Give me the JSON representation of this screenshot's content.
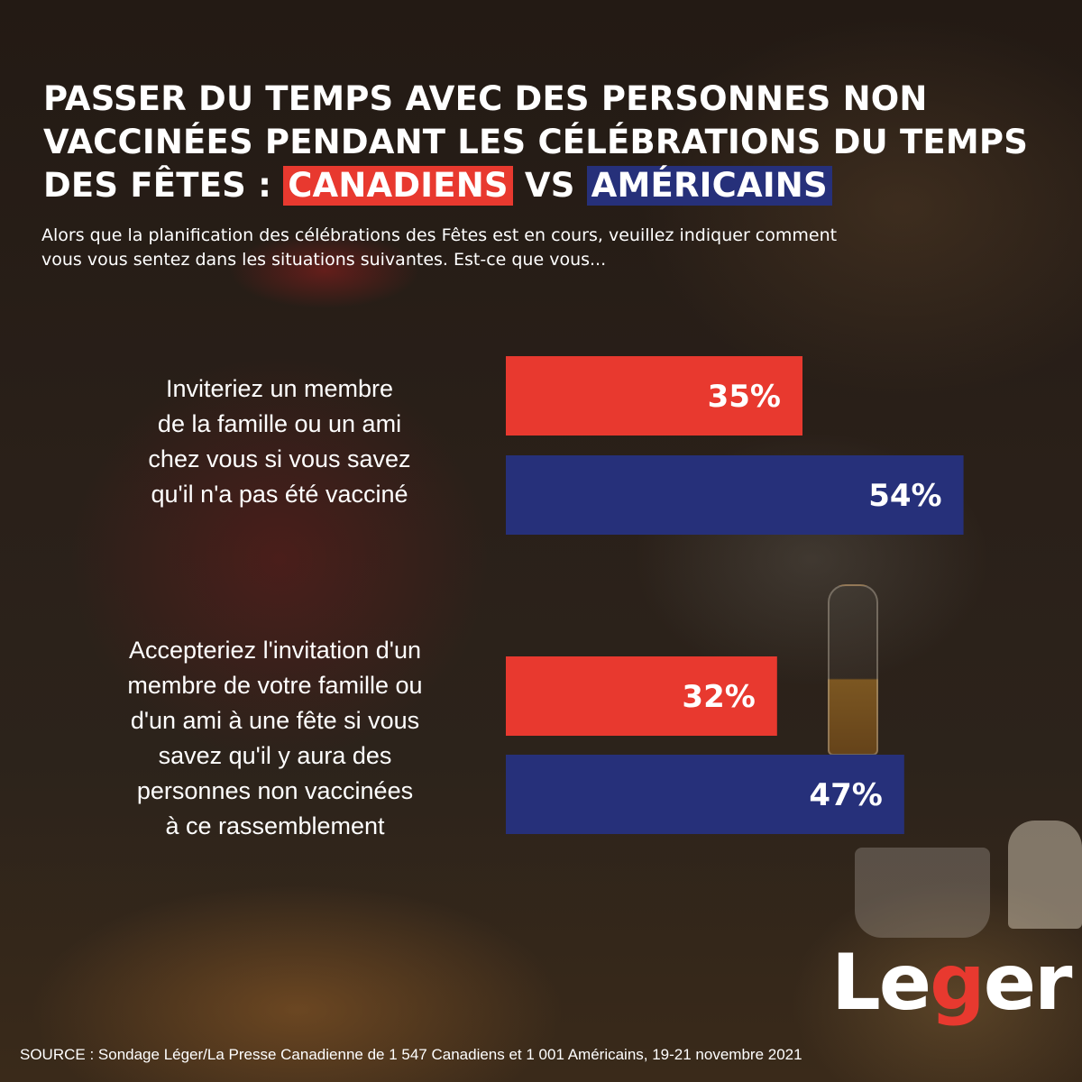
{
  "title": {
    "line1": "PASSER DU TEMPS AVEC DES PERSONNES NON",
    "line2": "VACCINÉES PENDANT LES CÉLÉBRATIONS DU TEMPS",
    "line3_prefix": "DES FÊTES :",
    "highlight_canadiens": "CANADIENS",
    "vs": "VS",
    "highlight_americains": "AMÉRICAINS"
  },
  "subtitle": {
    "line1": "Alors que la planification des célébrations des Fêtes est en cours, veuillez indiquer comment",
    "line2": "vous vous sentez dans les situations suivantes. Est-ce que vous..."
  },
  "questions": [
    {
      "lines": [
        "Inviteriez un membre",
        "de la famille ou un ami",
        "chez vous si vous savez",
        "qu'il n'a pas été vacciné"
      ]
    },
    {
      "lines": [
        "Accepteriez l'invitation d'un",
        "membre de votre famille ou",
        "d'un ami à une fête si vous",
        "savez qu'il y aura des",
        "personnes non vaccinées",
        "à ce rassemblement"
      ]
    }
  ],
  "chart_data": {
    "type": "bar",
    "orientation": "horizontal",
    "categories": [
      "Q1",
      "Q2"
    ],
    "series": [
      {
        "name": "CANADIENS",
        "color": "#e8392f",
        "values": [
          35,
          32
        ],
        "labels": [
          "35%",
          "32%"
        ]
      },
      {
        "name": "AMÉRICAINS",
        "color": "#26307a",
        "values": [
          54,
          47
        ],
        "labels": [
          "54%",
          "47%"
        ]
      }
    ],
    "unit": "%",
    "xlim": [
      0,
      100
    ],
    "grid": false
  },
  "logo": {
    "prefix": "Le",
    "accent": "g",
    "suffix": "er",
    "accent_color": "#e8392f"
  },
  "source": "SOURCE : Sondage Léger/La Presse Canadienne de 1 547 Canadiens et 1 001 Américains, 19-21 novembre 2021"
}
